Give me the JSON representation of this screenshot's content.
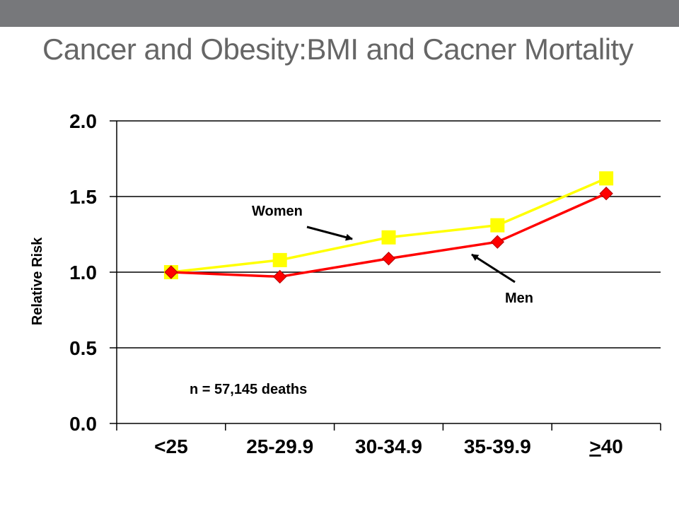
{
  "slide": {
    "title": "Cancer and Obesity:BMI and Cacner Mortality"
  },
  "chart_data": {
    "type": "line",
    "categories": [
      "<25",
      "25-29.9",
      "30-34.9",
      "35-39.9",
      ">40"
    ],
    "series": [
      {
        "name": "Women",
        "values": [
          1.0,
          1.08,
          1.23,
          1.31,
          1.62
        ],
        "color": "#ffff00",
        "marker": "square"
      },
      {
        "name": "Men",
        "values": [
          1.0,
          0.97,
          1.09,
          1.2,
          1.52
        ],
        "color": "#ff0000",
        "marker": "diamond"
      }
    ],
    "ylabel": "Relative Risk",
    "xlabel": "",
    "ylim": [
      0,
      2.0
    ],
    "yticks": [
      "0.0",
      "0.5",
      "1.0",
      "1.5",
      "2.0"
    ],
    "grid": true,
    "annotations": [
      "n = 57,145 deaths"
    ]
  }
}
